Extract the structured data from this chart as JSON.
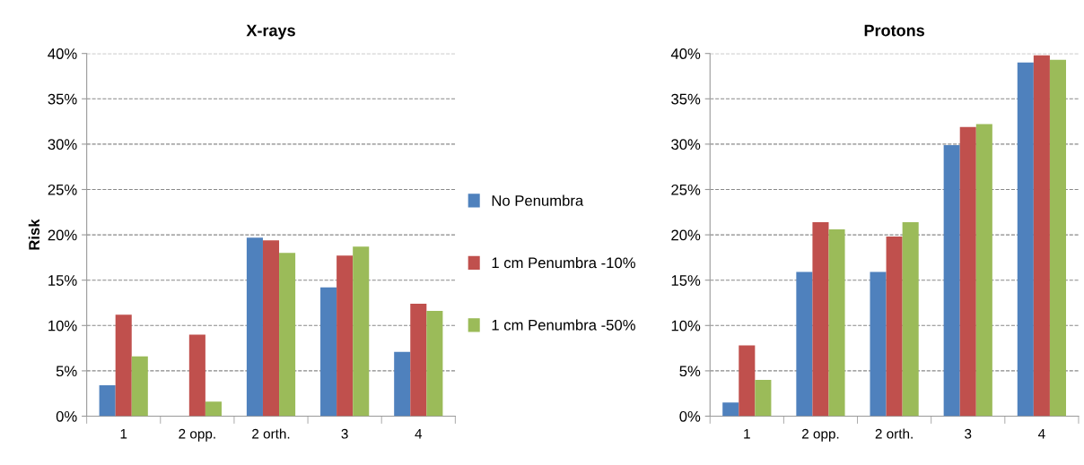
{
  "chart_data": [
    {
      "type": "bar",
      "title": "X-rays",
      "ylabel": "Risk",
      "categories": [
        "1",
        "2 opp.",
        "2 orth.",
        "3",
        "4"
      ],
      "series": [
        {
          "name": "No Penumbra",
          "color": "#4f81bd",
          "values": [
            3.4,
            0,
            19.7,
            14.2,
            7.1
          ]
        },
        {
          "name": "1 cm Penumbra -10%",
          "color": "#c0504d",
          "values": [
            11.2,
            9.0,
            19.4,
            17.7,
            12.4
          ]
        },
        {
          "name": "1 cm Penumbra -50%",
          "color": "#9bbb59",
          "values": [
            6.6,
            1.6,
            18.0,
            18.7,
            11.6
          ]
        }
      ],
      "ylim": [
        0,
        40
      ],
      "yticks": [
        {
          "value": 0,
          "label": "0%"
        },
        {
          "value": 5,
          "label": "5%"
        },
        {
          "value": 10,
          "label": "10%"
        },
        {
          "value": 15,
          "label": "15%"
        },
        {
          "value": 20,
          "label": "20%"
        },
        {
          "value": 25,
          "label": "25%"
        },
        {
          "value": 30,
          "label": "30%"
        },
        {
          "value": 35,
          "label": "35%"
        },
        {
          "value": 40,
          "label": "40%"
        }
      ],
      "grid": "y",
      "legend": "right"
    },
    {
      "type": "bar",
      "title": "Protons",
      "categories": [
        "1",
        "2 opp.",
        "2 orth.",
        "3",
        "4"
      ],
      "series": [
        {
          "color": "#4f81bd",
          "values": [
            1.5,
            15.9,
            15.9,
            29.9,
            39.0
          ]
        },
        {
          "color": "#c0504d",
          "values": [
            7.8,
            21.4,
            19.8,
            31.9,
            39.8
          ]
        },
        {
          "color": "#9bbb59",
          "values": [
            4.0,
            20.6,
            21.4,
            32.2,
            39.3
          ]
        }
      ],
      "ylim": [
        0,
        40
      ],
      "yticks": [
        {
          "value": 0,
          "label": "0%"
        },
        {
          "value": 5,
          "label": "5%"
        },
        {
          "value": 10,
          "label": "10%"
        },
        {
          "value": 15,
          "label": "15%"
        },
        {
          "value": 20,
          "label": "20%"
        },
        {
          "value": 25,
          "label": "25%"
        },
        {
          "value": 30,
          "label": "30%"
        },
        {
          "value": 35,
          "label": "35%"
        },
        {
          "value": 40,
          "label": "40%"
        }
      ],
      "grid": "y"
    }
  ]
}
